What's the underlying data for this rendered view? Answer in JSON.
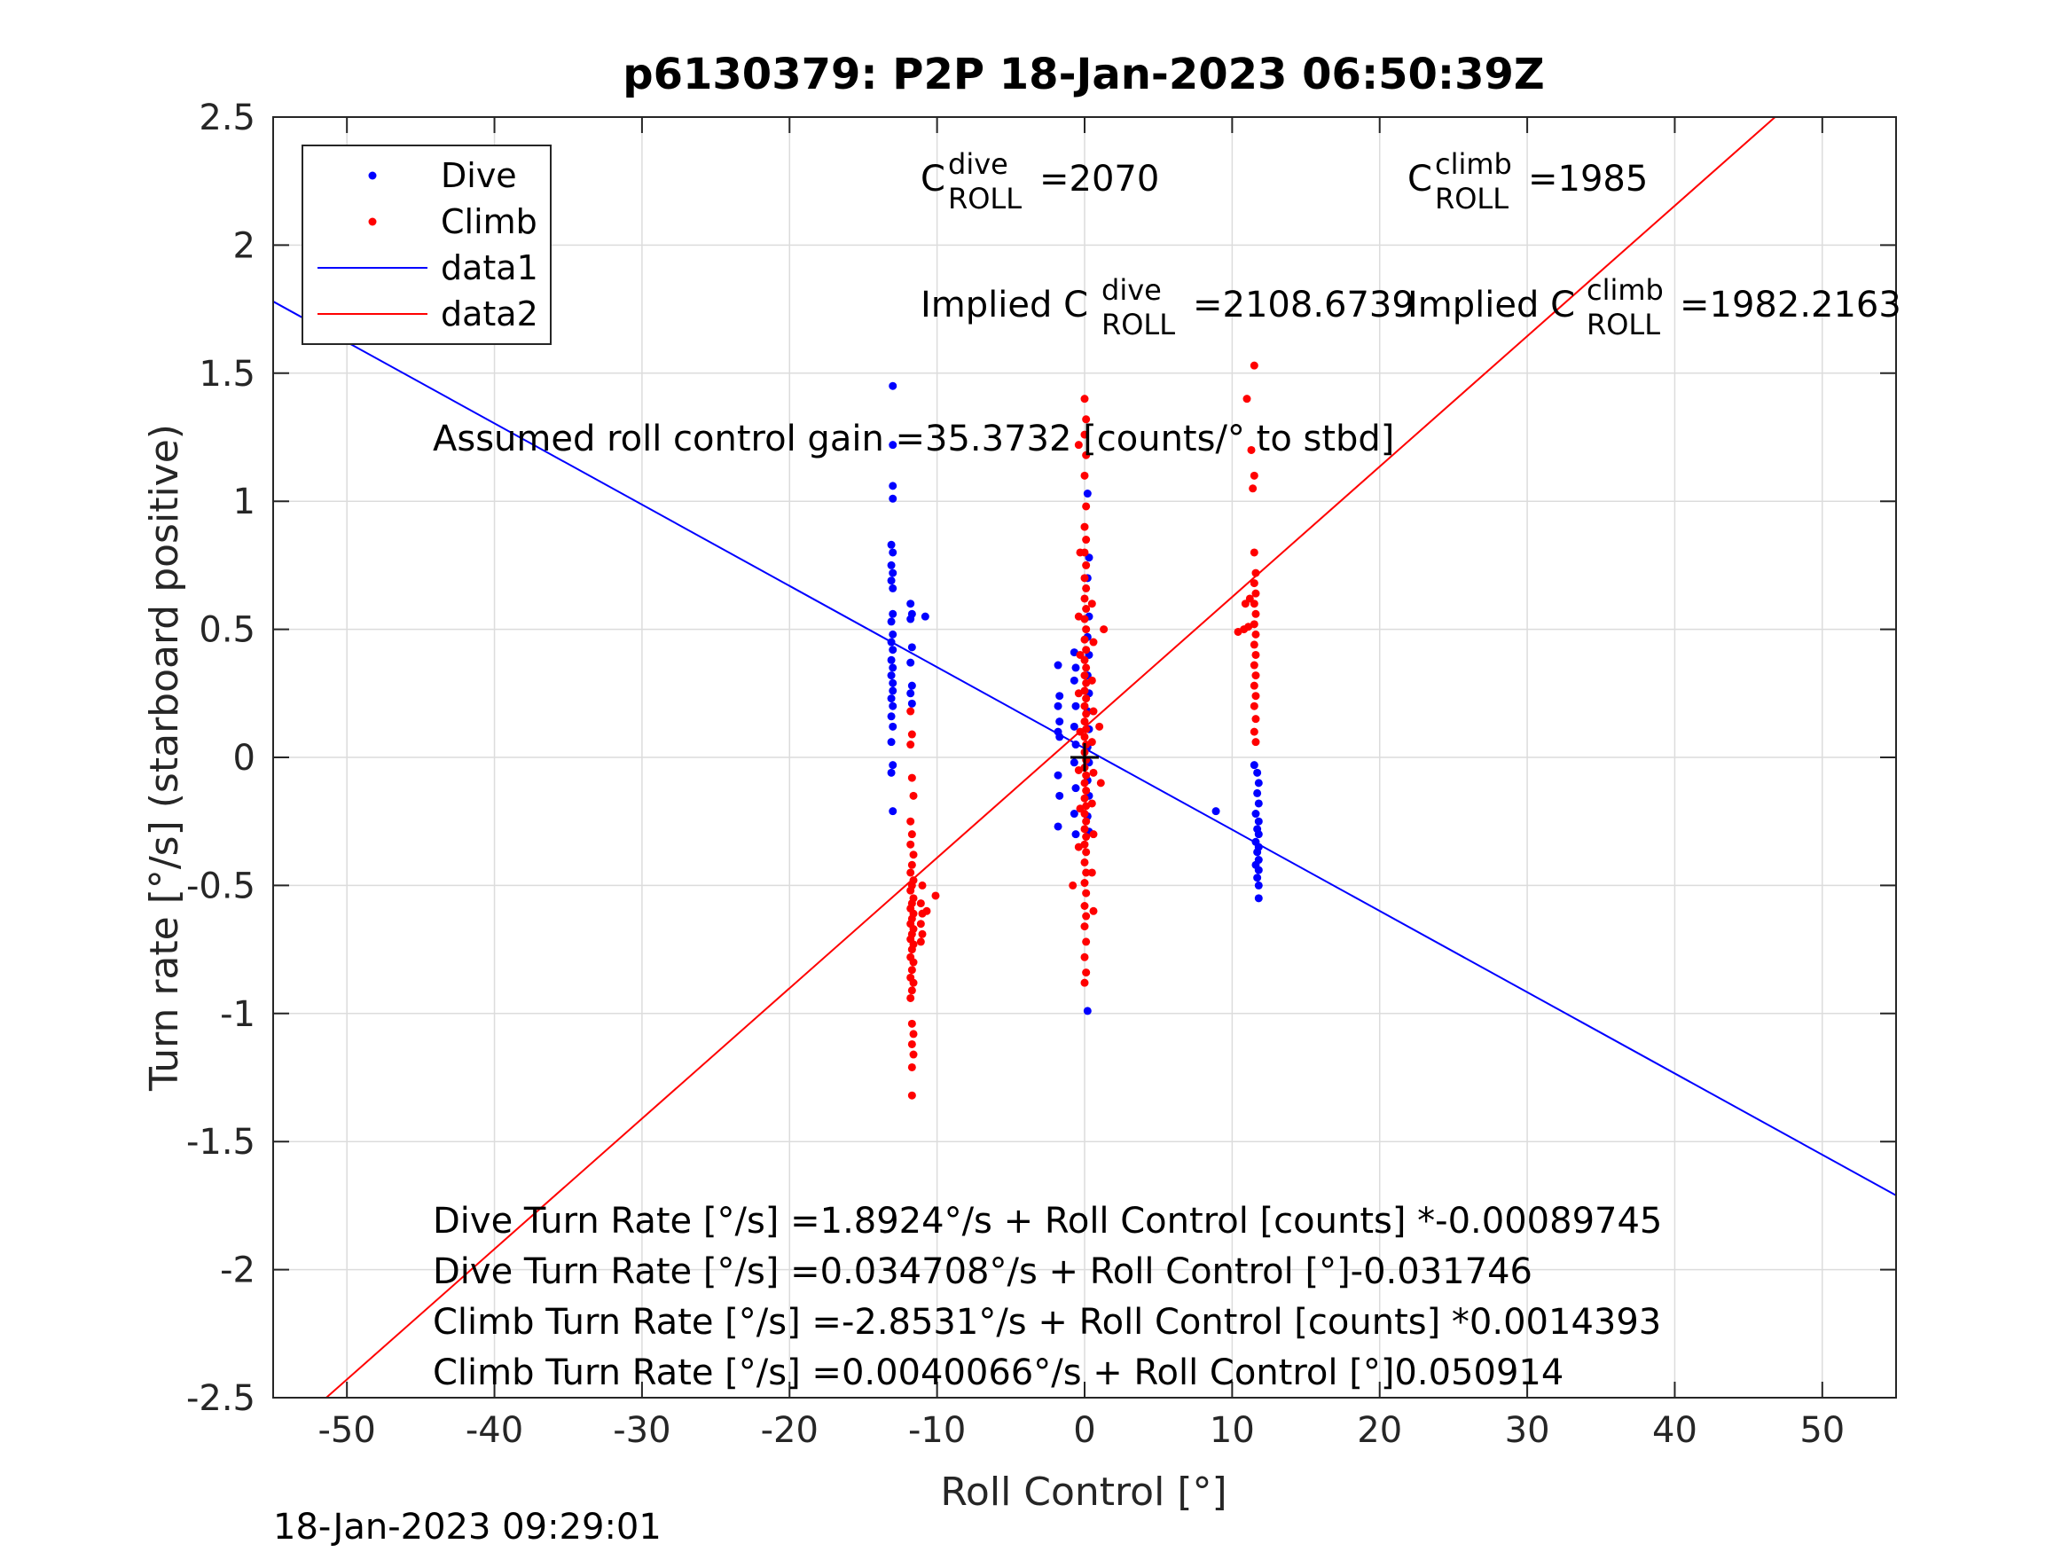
{
  "title": "p6130379: P2P 18-Jan-2023 06:50:39Z",
  "footer_timestamp": "18-Jan-2023 09:29:01",
  "colors": {
    "dive": "#0000ff",
    "climb": "#ff0000",
    "grid": "#dcdcdc",
    "axes": "#262626"
  },
  "annotations": {
    "c_roll_dive": {
      "base": "C",
      "sup": "dive",
      "sub": "ROLL",
      "value": "=2070"
    },
    "c_roll_climb": {
      "base": "C",
      "sup": "climb",
      "sub": "ROLL",
      "value": "=1985"
    },
    "implied_dive": {
      "prefix": "Implied C",
      "sup": "dive",
      "sub": "ROLL",
      "value": "=2108.6739"
    },
    "implied_climb": {
      "prefix": "Implied C",
      "sup": "climb",
      "sub": "ROLL",
      "value": "=1982.2163"
    },
    "assumed_gain": "Assumed roll control gain =35.3732 [counts/° to stbd]",
    "equations": [
      "Dive Turn Rate [°/s] =1.8924°/s + Roll Control [counts] *-0.00089745",
      "Dive Turn Rate [°/s] =0.034708°/s + Roll Control [°]-0.031746",
      "Climb Turn Rate [°/s] =-2.8531°/s + Roll Control [counts] *0.0014393",
      "Climb Turn Rate [°/s] =0.0040066°/s + Roll Control [°]0.050914"
    ]
  },
  "chart_data": {
    "type": "scatter",
    "title": "p6130379: P2P 18-Jan-2023 06:50:39Z",
    "xlabel": "Roll Control [°]",
    "ylabel": "Turn rate [°/s] (starboard positive)",
    "xlim": [
      -55,
      55
    ],
    "ylim": [
      -2.5,
      2.5
    ],
    "xticks": [
      -50,
      -40,
      -30,
      -20,
      -10,
      0,
      10,
      20,
      30,
      40,
      50
    ],
    "yticks": [
      -2.5,
      -2,
      -1.5,
      -1,
      -0.5,
      0,
      0.5,
      1,
      1.5,
      2,
      2.5
    ],
    "xtick_labels": [
      "-50",
      "-40",
      "-30",
      "-20",
      "-10",
      "0",
      "10",
      "20",
      "30",
      "40",
      "50"
    ],
    "ytick_labels": [
      "-2.5",
      "-2",
      "-1.5",
      "-1",
      "-0.5",
      "0",
      "0.5",
      "1",
      "1.5",
      "2",
      "2.5"
    ],
    "grid": true,
    "legend_position": "top-left",
    "legend": [
      "Dive",
      "Climb",
      "data1",
      "data2"
    ],
    "origin_marker": [
      0,
      0
    ],
    "series": [
      {
        "name": "Dive",
        "kind": "points",
        "color": "#0000ff",
        "points": [
          [
            -13.0,
            1.45
          ],
          [
            -13.0,
            1.22
          ],
          [
            -13.0,
            1.06
          ],
          [
            -13.0,
            1.01
          ],
          [
            -13.1,
            0.83
          ],
          [
            -13.0,
            0.8
          ],
          [
            -13.1,
            0.75
          ],
          [
            -13.0,
            0.72
          ],
          [
            -13.1,
            0.69
          ],
          [
            -13.0,
            0.66
          ],
          [
            -13.0,
            0.56
          ],
          [
            -13.1,
            0.53
          ],
          [
            -13.0,
            0.48
          ],
          [
            -13.1,
            0.45
          ],
          [
            -13.0,
            0.42
          ],
          [
            -13.1,
            0.38
          ],
          [
            -13.0,
            0.35
          ],
          [
            -13.1,
            0.32
          ],
          [
            -13.0,
            0.29
          ],
          [
            -13.0,
            0.26
          ],
          [
            -13.1,
            0.23
          ],
          [
            -13.0,
            0.2
          ],
          [
            -13.1,
            0.16
          ],
          [
            -13.0,
            0.12
          ],
          [
            -13.1,
            0.06
          ],
          [
            -13.0,
            -0.03
          ],
          [
            -13.1,
            -0.06
          ],
          [
            -13.0,
            -0.21
          ],
          [
            -11.8,
            0.6
          ],
          [
            -11.7,
            0.56
          ],
          [
            -11.8,
            0.54
          ],
          [
            -11.7,
            0.43
          ],
          [
            -11.8,
            0.37
          ],
          [
            -11.7,
            0.28
          ],
          [
            -11.8,
            0.25
          ],
          [
            -11.7,
            0.21
          ],
          [
            -10.8,
            0.55
          ],
          [
            -1.8,
            0.36
          ],
          [
            -1.7,
            0.24
          ],
          [
            -1.8,
            0.2
          ],
          [
            -1.7,
            0.14
          ],
          [
            -1.8,
            0.1
          ],
          [
            -1.7,
            0.08
          ],
          [
            -1.8,
            -0.07
          ],
          [
            -1.7,
            -0.15
          ],
          [
            -1.8,
            -0.27
          ],
          [
            -0.7,
            0.41
          ],
          [
            -0.6,
            0.35
          ],
          [
            -0.7,
            0.3
          ],
          [
            -0.6,
            0.2
          ],
          [
            -0.7,
            0.12
          ],
          [
            -0.6,
            0.05
          ],
          [
            -0.7,
            -0.02
          ],
          [
            -0.6,
            -0.12
          ],
          [
            -0.7,
            -0.22
          ],
          [
            -0.6,
            -0.3
          ],
          [
            0.2,
            1.03
          ],
          [
            0.3,
            0.78
          ],
          [
            0.2,
            0.7
          ],
          [
            0.3,
            0.55
          ],
          [
            0.2,
            0.47
          ],
          [
            0.3,
            0.4
          ],
          [
            0.2,
            0.32
          ],
          [
            0.3,
            0.25
          ],
          [
            0.2,
            0.18
          ],
          [
            0.3,
            0.11
          ],
          [
            0.2,
            0.04
          ],
          [
            0.3,
            -0.02
          ],
          [
            0.2,
            -0.09
          ],
          [
            0.3,
            -0.15
          ],
          [
            0.2,
            -0.23
          ],
          [
            0.3,
            -0.29
          ],
          [
            0.2,
            -0.99
          ],
          [
            8.9,
            -0.21
          ],
          [
            11.5,
            -0.03
          ],
          [
            11.7,
            -0.06
          ],
          [
            11.8,
            -0.1
          ],
          [
            11.7,
            -0.14
          ],
          [
            11.8,
            -0.18
          ],
          [
            11.6,
            -0.22
          ],
          [
            11.8,
            -0.25
          ],
          [
            11.7,
            -0.28
          ],
          [
            11.8,
            -0.3
          ],
          [
            11.6,
            -0.33
          ],
          [
            11.8,
            -0.35
          ],
          [
            11.7,
            -0.37
          ],
          [
            11.8,
            -0.4
          ],
          [
            11.6,
            -0.42
          ],
          [
            11.8,
            -0.44
          ],
          [
            11.7,
            -0.47
          ],
          [
            11.8,
            -0.5
          ],
          [
            11.8,
            -0.55
          ]
        ]
      },
      {
        "name": "Climb",
        "kind": "points",
        "color": "#ff0000",
        "points": [
          [
            -11.8,
            0.18
          ],
          [
            -11.7,
            0.09
          ],
          [
            -11.8,
            0.05
          ],
          [
            -11.7,
            -0.08
          ],
          [
            -11.6,
            -0.15
          ],
          [
            -11.8,
            -0.25
          ],
          [
            -11.7,
            -0.3
          ],
          [
            -11.8,
            -0.34
          ],
          [
            -11.6,
            -0.38
          ],
          [
            -11.7,
            -0.42
          ],
          [
            -11.8,
            -0.45
          ],
          [
            -11.6,
            -0.48
          ],
          [
            -11.7,
            -0.5
          ],
          [
            -11.8,
            -0.52
          ],
          [
            -11.6,
            -0.55
          ],
          [
            -11.7,
            -0.57
          ],
          [
            -11.8,
            -0.59
          ],
          [
            -11.6,
            -0.61
          ],
          [
            -11.7,
            -0.63
          ],
          [
            -11.8,
            -0.65
          ],
          [
            -11.6,
            -0.67
          ],
          [
            -11.7,
            -0.69
          ],
          [
            -11.8,
            -0.71
          ],
          [
            -11.6,
            -0.73
          ],
          [
            -11.7,
            -0.75
          ],
          [
            -11.8,
            -0.78
          ],
          [
            -11.6,
            -0.8
          ],
          [
            -11.7,
            -0.83
          ],
          [
            -11.8,
            -0.86
          ],
          [
            -11.6,
            -0.88
          ],
          [
            -11.7,
            -0.91
          ],
          [
            -11.8,
            -0.94
          ],
          [
            -11.7,
            -1.04
          ],
          [
            -11.6,
            -1.08
          ],
          [
            -11.7,
            -1.12
          ],
          [
            -11.6,
            -1.16
          ],
          [
            -11.7,
            -1.21
          ],
          [
            -11.7,
            -1.32
          ],
          [
            -11.0,
            -0.5
          ],
          [
            -11.1,
            -0.57
          ],
          [
            -11.0,
            -0.61
          ],
          [
            -11.1,
            -0.65
          ],
          [
            -11.0,
            -0.69
          ],
          [
            -11.1,
            -0.72
          ],
          [
            -10.7,
            -0.6
          ],
          [
            -10.1,
            -0.54
          ],
          [
            -0.4,
            1.22
          ],
          [
            -0.3,
            0.8
          ],
          [
            -0.4,
            0.55
          ],
          [
            -0.3,
            0.4
          ],
          [
            -0.4,
            0.25
          ],
          [
            -0.3,
            0.1
          ],
          [
            -0.4,
            -0.05
          ],
          [
            -0.3,
            -0.2
          ],
          [
            -0.4,
            -0.35
          ],
          [
            -0.8,
            -0.5
          ],
          [
            0.0,
            1.4
          ],
          [
            0.1,
            1.32
          ],
          [
            0.0,
            1.26
          ],
          [
            0.1,
            1.18
          ],
          [
            0.0,
            1.1
          ],
          [
            0.1,
            0.98
          ],
          [
            0.0,
            0.9
          ],
          [
            0.1,
            0.85
          ],
          [
            0.0,
            0.8
          ],
          [
            0.1,
            0.75
          ],
          [
            0.0,
            0.7
          ],
          [
            0.1,
            0.66
          ],
          [
            0.0,
            0.62
          ],
          [
            0.1,
            0.58
          ],
          [
            0.0,
            0.54
          ],
          [
            0.1,
            0.5
          ],
          [
            0.0,
            0.46
          ],
          [
            0.1,
            0.42
          ],
          [
            0.0,
            0.38
          ],
          [
            0.1,
            0.35
          ],
          [
            0.0,
            0.32
          ],
          [
            0.1,
            0.29
          ],
          [
            0.0,
            0.26
          ],
          [
            0.1,
            0.23
          ],
          [
            0.0,
            0.2
          ],
          [
            0.1,
            0.17
          ],
          [
            0.0,
            0.14
          ],
          [
            0.1,
            0.11
          ],
          [
            0.0,
            0.08
          ],
          [
            0.1,
            0.05
          ],
          [
            0.0,
            0.02
          ],
          [
            0.1,
            -0.01
          ],
          [
            0.0,
            -0.04
          ],
          [
            0.1,
            -0.07
          ],
          [
            0.0,
            -0.1
          ],
          [
            0.1,
            -0.13
          ],
          [
            0.0,
            -0.16
          ],
          [
            0.1,
            -0.19
          ],
          [
            0.0,
            -0.22
          ],
          [
            0.1,
            -0.25
          ],
          [
            0.0,
            -0.28
          ],
          [
            0.1,
            -0.31
          ],
          [
            0.0,
            -0.34
          ],
          [
            0.1,
            -0.37
          ],
          [
            0.0,
            -0.41
          ],
          [
            0.1,
            -0.45
          ],
          [
            0.0,
            -0.49
          ],
          [
            0.1,
            -0.53
          ],
          [
            0.0,
            -0.58
          ],
          [
            0.1,
            -0.62
          ],
          [
            0.0,
            -0.66
          ],
          [
            0.1,
            -0.72
          ],
          [
            0.0,
            -0.78
          ],
          [
            0.1,
            -0.84
          ],
          [
            0.0,
            -0.88
          ],
          [
            0.5,
            0.6
          ],
          [
            0.6,
            0.45
          ],
          [
            0.5,
            0.3
          ],
          [
            0.6,
            0.18
          ],
          [
            0.5,
            0.06
          ],
          [
            0.6,
            -0.06
          ],
          [
            0.5,
            -0.18
          ],
          [
            0.6,
            -0.3
          ],
          [
            0.5,
            -0.45
          ],
          [
            0.6,
            -0.6
          ],
          [
            1.0,
            0.12
          ],
          [
            1.1,
            -0.1
          ],
          [
            1.3,
            0.5
          ],
          [
            11.0,
            1.4
          ],
          [
            11.5,
            1.53
          ],
          [
            11.3,
            1.2
          ],
          [
            11.5,
            1.1
          ],
          [
            11.4,
            1.05
          ],
          [
            11.5,
            0.8
          ],
          [
            11.6,
            0.72
          ],
          [
            11.5,
            0.68
          ],
          [
            11.6,
            0.64
          ],
          [
            11.5,
            0.6
          ],
          [
            11.6,
            0.56
          ],
          [
            11.5,
            0.52
          ],
          [
            11.6,
            0.48
          ],
          [
            11.5,
            0.44
          ],
          [
            11.6,
            0.4
          ],
          [
            11.5,
            0.36
          ],
          [
            11.6,
            0.32
          ],
          [
            11.5,
            0.28
          ],
          [
            11.6,
            0.24
          ],
          [
            11.5,
            0.2
          ],
          [
            11.6,
            0.15
          ],
          [
            11.5,
            0.1
          ],
          [
            11.6,
            0.06
          ],
          [
            10.4,
            0.49
          ],
          [
            10.8,
            0.5
          ],
          [
            11.1,
            0.51
          ],
          [
            11.2,
            0.62
          ],
          [
            10.9,
            0.6
          ]
        ]
      },
      {
        "name": "data1",
        "kind": "line",
        "color": "#0000ff",
        "x": [
          -55,
          55
        ],
        "y": [
          1.78,
          -1.71
        ]
      },
      {
        "name": "data2",
        "kind": "line",
        "color": "#ff0000",
        "x": [
          -51.4,
          46.8
        ],
        "y": [
          -2.5,
          2.5
        ]
      }
    ]
  }
}
